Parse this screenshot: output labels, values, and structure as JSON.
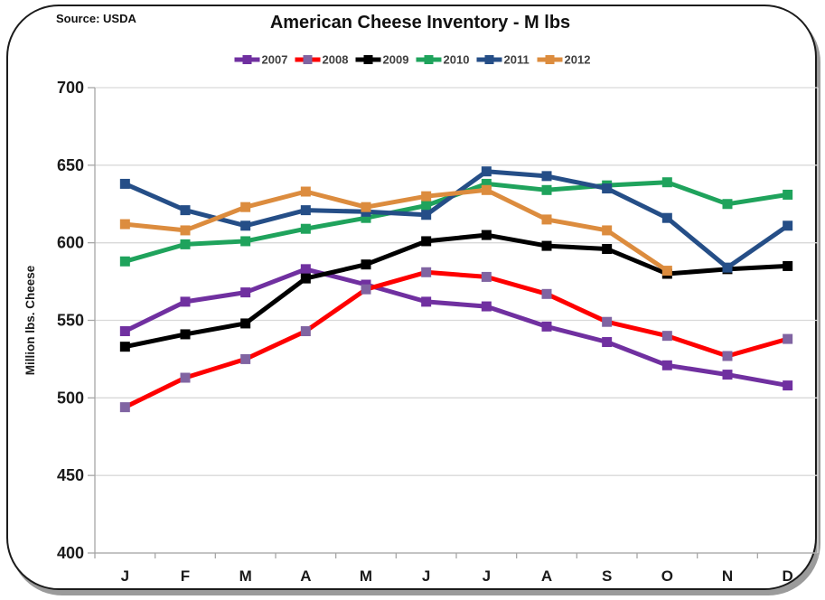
{
  "header": {
    "source_label": "Source: USDA",
    "title": "American Cheese Inventory  - M lbs"
  },
  "chart_data": {
    "type": "line",
    "title": "American Cheese Inventory  - M lbs",
    "source": "Source: USDA",
    "xlabel": "",
    "ylabel": "Million lbs. Cheese",
    "categories": [
      "J",
      "F",
      "M",
      "A",
      "M",
      "J",
      "J",
      "A",
      "S",
      "O",
      "N",
      "D"
    ],
    "ylim": [
      400,
      700
    ],
    "yticks": [
      400,
      450,
      500,
      550,
      600,
      650,
      700
    ],
    "grid": true,
    "legend_position": "top",
    "colors": {
      "gridline": "#D9D9D9",
      "axis": "#A6A6A6",
      "tick_text": "#1A1A1A",
      "legend_text": "#404040"
    },
    "series": [
      {
        "name": "2007",
        "color": "#7030A0",
        "marker_color": "#7030A0",
        "values": [
          543,
          562,
          568,
          583,
          573,
          562,
          559,
          546,
          536,
          521,
          515,
          508
        ]
      },
      {
        "name": "2008",
        "color": "#FE0000",
        "marker_color": "#8064A2",
        "values": [
          494,
          513,
          525,
          543,
          570,
          581,
          578,
          567,
          549,
          540,
          527,
          538
        ]
      },
      {
        "name": "2009",
        "color": "#000000",
        "marker_color": "#000000",
        "values": [
          533,
          541,
          548,
          577,
          586,
          601,
          605,
          598,
          596,
          580,
          583,
          585
        ]
      },
      {
        "name": "2010",
        "color": "#1FA35C",
        "marker_color": "#1FA35C",
        "values": [
          588,
          599,
          601,
          609,
          616,
          624,
          638,
          634,
          637,
          639,
          625,
          631
        ]
      },
      {
        "name": "2011",
        "color": "#254E87",
        "marker_color": "#254E87",
        "values": [
          638,
          621,
          611,
          621,
          620,
          618,
          646,
          643,
          635,
          616,
          584,
          611
        ]
      },
      {
        "name": "2012",
        "color": "#DC8C3E",
        "marker_color": "#DC8C3E",
        "values": [
          612,
          608,
          623,
          633,
          623,
          630,
          634,
          615,
          608,
          582,
          null,
          null
        ]
      }
    ]
  }
}
